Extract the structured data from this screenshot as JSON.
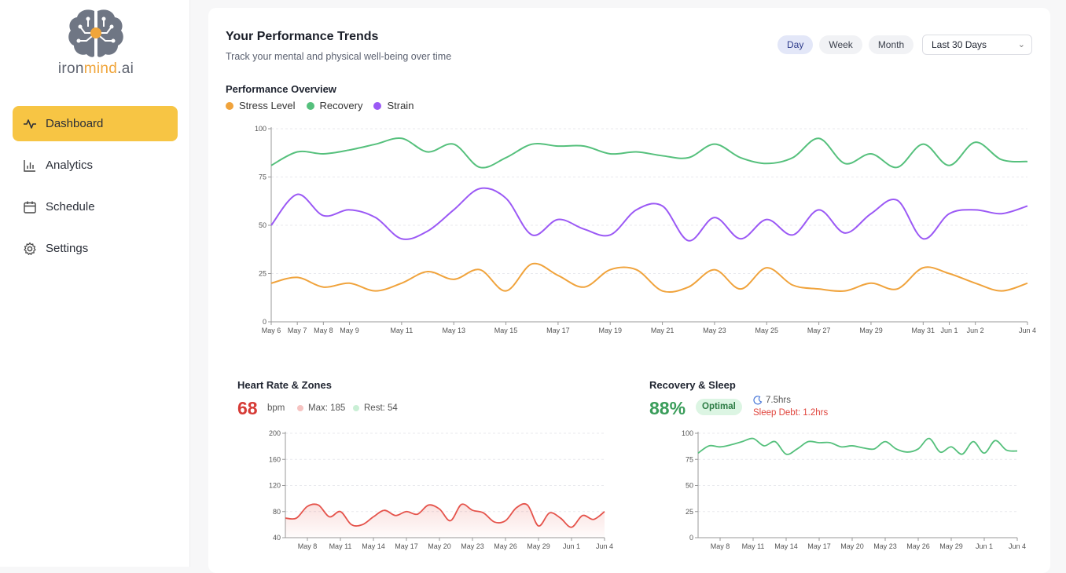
{
  "brand": {
    "name_part1": "iron",
    "name_part2": "mind",
    "name_part3": ".ai"
  },
  "nav": {
    "items": [
      {
        "label": "Dashboard",
        "icon": "activity-icon",
        "active": true
      },
      {
        "label": "Analytics",
        "icon": "bar-chart-icon",
        "active": false
      },
      {
        "label": "Schedule",
        "icon": "calendar-icon",
        "active": false
      },
      {
        "label": "Settings",
        "icon": "gear-icon",
        "active": false
      }
    ]
  },
  "header": {
    "title": "Your Performance Trends",
    "subtitle": "Track your mental and physical well-being over time",
    "toggles": [
      "Day",
      "Week",
      "Month"
    ],
    "active_toggle": "Day",
    "range_select": "Last 30 Days"
  },
  "overview": {
    "title": "Performance Overview",
    "legend": [
      {
        "label": "Stress Level",
        "color": "#f0a33c"
      },
      {
        "label": "Recovery",
        "color": "#55c07c"
      },
      {
        "label": "Strain",
        "color": "#9b59f5"
      }
    ]
  },
  "heart": {
    "title": "Heart Rate & Zones",
    "value": "68",
    "unit": "bpm",
    "max_label": "Max: 185",
    "rest_label": "Rest: 54"
  },
  "recovery": {
    "title": "Recovery & Sleep",
    "value": "88%",
    "badge": "Optimal",
    "sleep": "7.5hrs",
    "sleep_debt": "Sleep Debt: 1.2hrs"
  },
  "chart_data": [
    {
      "type": "line",
      "title": "Performance Overview",
      "x": [
        "May 6",
        "May 7",
        "May 8",
        "May 9",
        "May 10",
        "May 11",
        "May 12",
        "May 13",
        "May 14",
        "May 15",
        "May 16",
        "May 17",
        "May 18",
        "May 19",
        "May 20",
        "May 21",
        "May 22",
        "May 23",
        "May 24",
        "May 25",
        "May 26",
        "May 27",
        "May 28",
        "May 29",
        "May 30",
        "May 31",
        "Jun 1",
        "Jun 2",
        "Jun 3",
        "Jun 4"
      ],
      "x_tick_labels": [
        "May 6",
        "May 7",
        "May 8",
        "May 9",
        "May 11",
        "May 13",
        "May 15",
        "May 17",
        "May 19",
        "May 21",
        "May 23",
        "May 25",
        "May 27",
        "May 29",
        "May 31",
        "Jun 1",
        "Jun 2",
        "Jun 4"
      ],
      "ylim": [
        0,
        100
      ],
      "yticks": [
        0,
        25,
        50,
        75,
        100
      ],
      "grid": true,
      "legend": "top-left",
      "series": [
        {
          "name": "Stress Level",
          "color": "#f0a33c",
          "values": [
            20,
            23,
            18,
            20,
            16,
            20,
            26,
            22,
            27,
            16,
            30,
            24,
            18,
            27,
            27,
            16,
            18,
            27,
            17,
            28,
            19,
            17,
            16,
            20,
            17,
            28,
            25,
            20,
            16,
            20
          ]
        },
        {
          "name": "Recovery",
          "color": "#55c07c",
          "values": [
            81,
            88,
            87,
            89,
            92,
            95,
            88,
            92,
            80,
            85,
            92,
            91,
            91,
            87,
            88,
            86,
            85,
            92,
            85,
            82,
            85,
            95,
            82,
            87,
            80,
            92,
            81,
            93,
            84,
            83
          ]
        },
        {
          "name": "Strain",
          "color": "#9b59f5",
          "values": [
            50,
            66,
            55,
            58,
            54,
            43,
            47,
            58,
            69,
            64,
            45,
            53,
            48,
            45,
            58,
            60,
            42,
            54,
            43,
            53,
            45,
            58,
            46,
            56,
            63,
            43,
            56,
            58,
            56,
            60
          ]
        }
      ]
    },
    {
      "type": "area",
      "title": "Heart Rate & Zones",
      "x": [
        "May 6",
        "May 7",
        "May 8",
        "May 9",
        "May 10",
        "May 11",
        "May 12",
        "May 13",
        "May 14",
        "May 15",
        "May 16",
        "May 17",
        "May 18",
        "May 19",
        "May 20",
        "May 21",
        "May 22",
        "May 23",
        "May 24",
        "May 25",
        "May 26",
        "May 27",
        "May 28",
        "May 29",
        "May 30",
        "May 31",
        "Jun 1",
        "Jun 2",
        "Jun 3",
        "Jun 4"
      ],
      "x_tick_labels": [
        "May 8",
        "May 11",
        "May 14",
        "May 17",
        "May 20",
        "May 23",
        "May 26",
        "May 29",
        "Jun 1",
        "Jun 4"
      ],
      "ylim": [
        40,
        200
      ],
      "yticks": [
        40,
        80,
        120,
        160,
        200
      ],
      "grid": true,
      "series": [
        {
          "color": "#e5534b",
          "values": [
            70,
            70,
            88,
            90,
            72,
            80,
            60,
            60,
            72,
            82,
            74,
            80,
            76,
            90,
            84,
            66,
            91,
            82,
            78,
            64,
            66,
            86,
            90,
            58,
            78,
            70,
            56,
            74,
            68,
            80
          ]
        }
      ]
    },
    {
      "type": "line",
      "title": "Recovery & Sleep",
      "x": [
        "May 6",
        "May 7",
        "May 8",
        "May 9",
        "May 10",
        "May 11",
        "May 12",
        "May 13",
        "May 14",
        "May 15",
        "May 16",
        "May 17",
        "May 18",
        "May 19",
        "May 20",
        "May 21",
        "May 22",
        "May 23",
        "May 24",
        "May 25",
        "May 26",
        "May 27",
        "May 28",
        "May 29",
        "May 30",
        "May 31",
        "Jun 1",
        "Jun 2",
        "Jun 3",
        "Jun 4"
      ],
      "x_tick_labels": [
        "May 8",
        "May 11",
        "May 14",
        "May 17",
        "May 20",
        "May 23",
        "May 26",
        "May 29",
        "Jun 1",
        "Jun 4"
      ],
      "ylim": [
        0,
        100
      ],
      "yticks": [
        0,
        25,
        50,
        75,
        100
      ],
      "grid": true,
      "series": [
        {
          "color": "#55c07c",
          "values": [
            81,
            88,
            87,
            89,
            92,
            95,
            88,
            92,
            80,
            85,
            92,
            91,
            91,
            87,
            88,
            86,
            85,
            92,
            85,
            82,
            85,
            95,
            82,
            87,
            80,
            92,
            81,
            93,
            84,
            83
          ]
        }
      ]
    }
  ],
  "colors": {
    "accent": "#f7c544",
    "heart": "#d63b36",
    "recovery": "#3a9d5a",
    "debt": "#e0443c"
  }
}
